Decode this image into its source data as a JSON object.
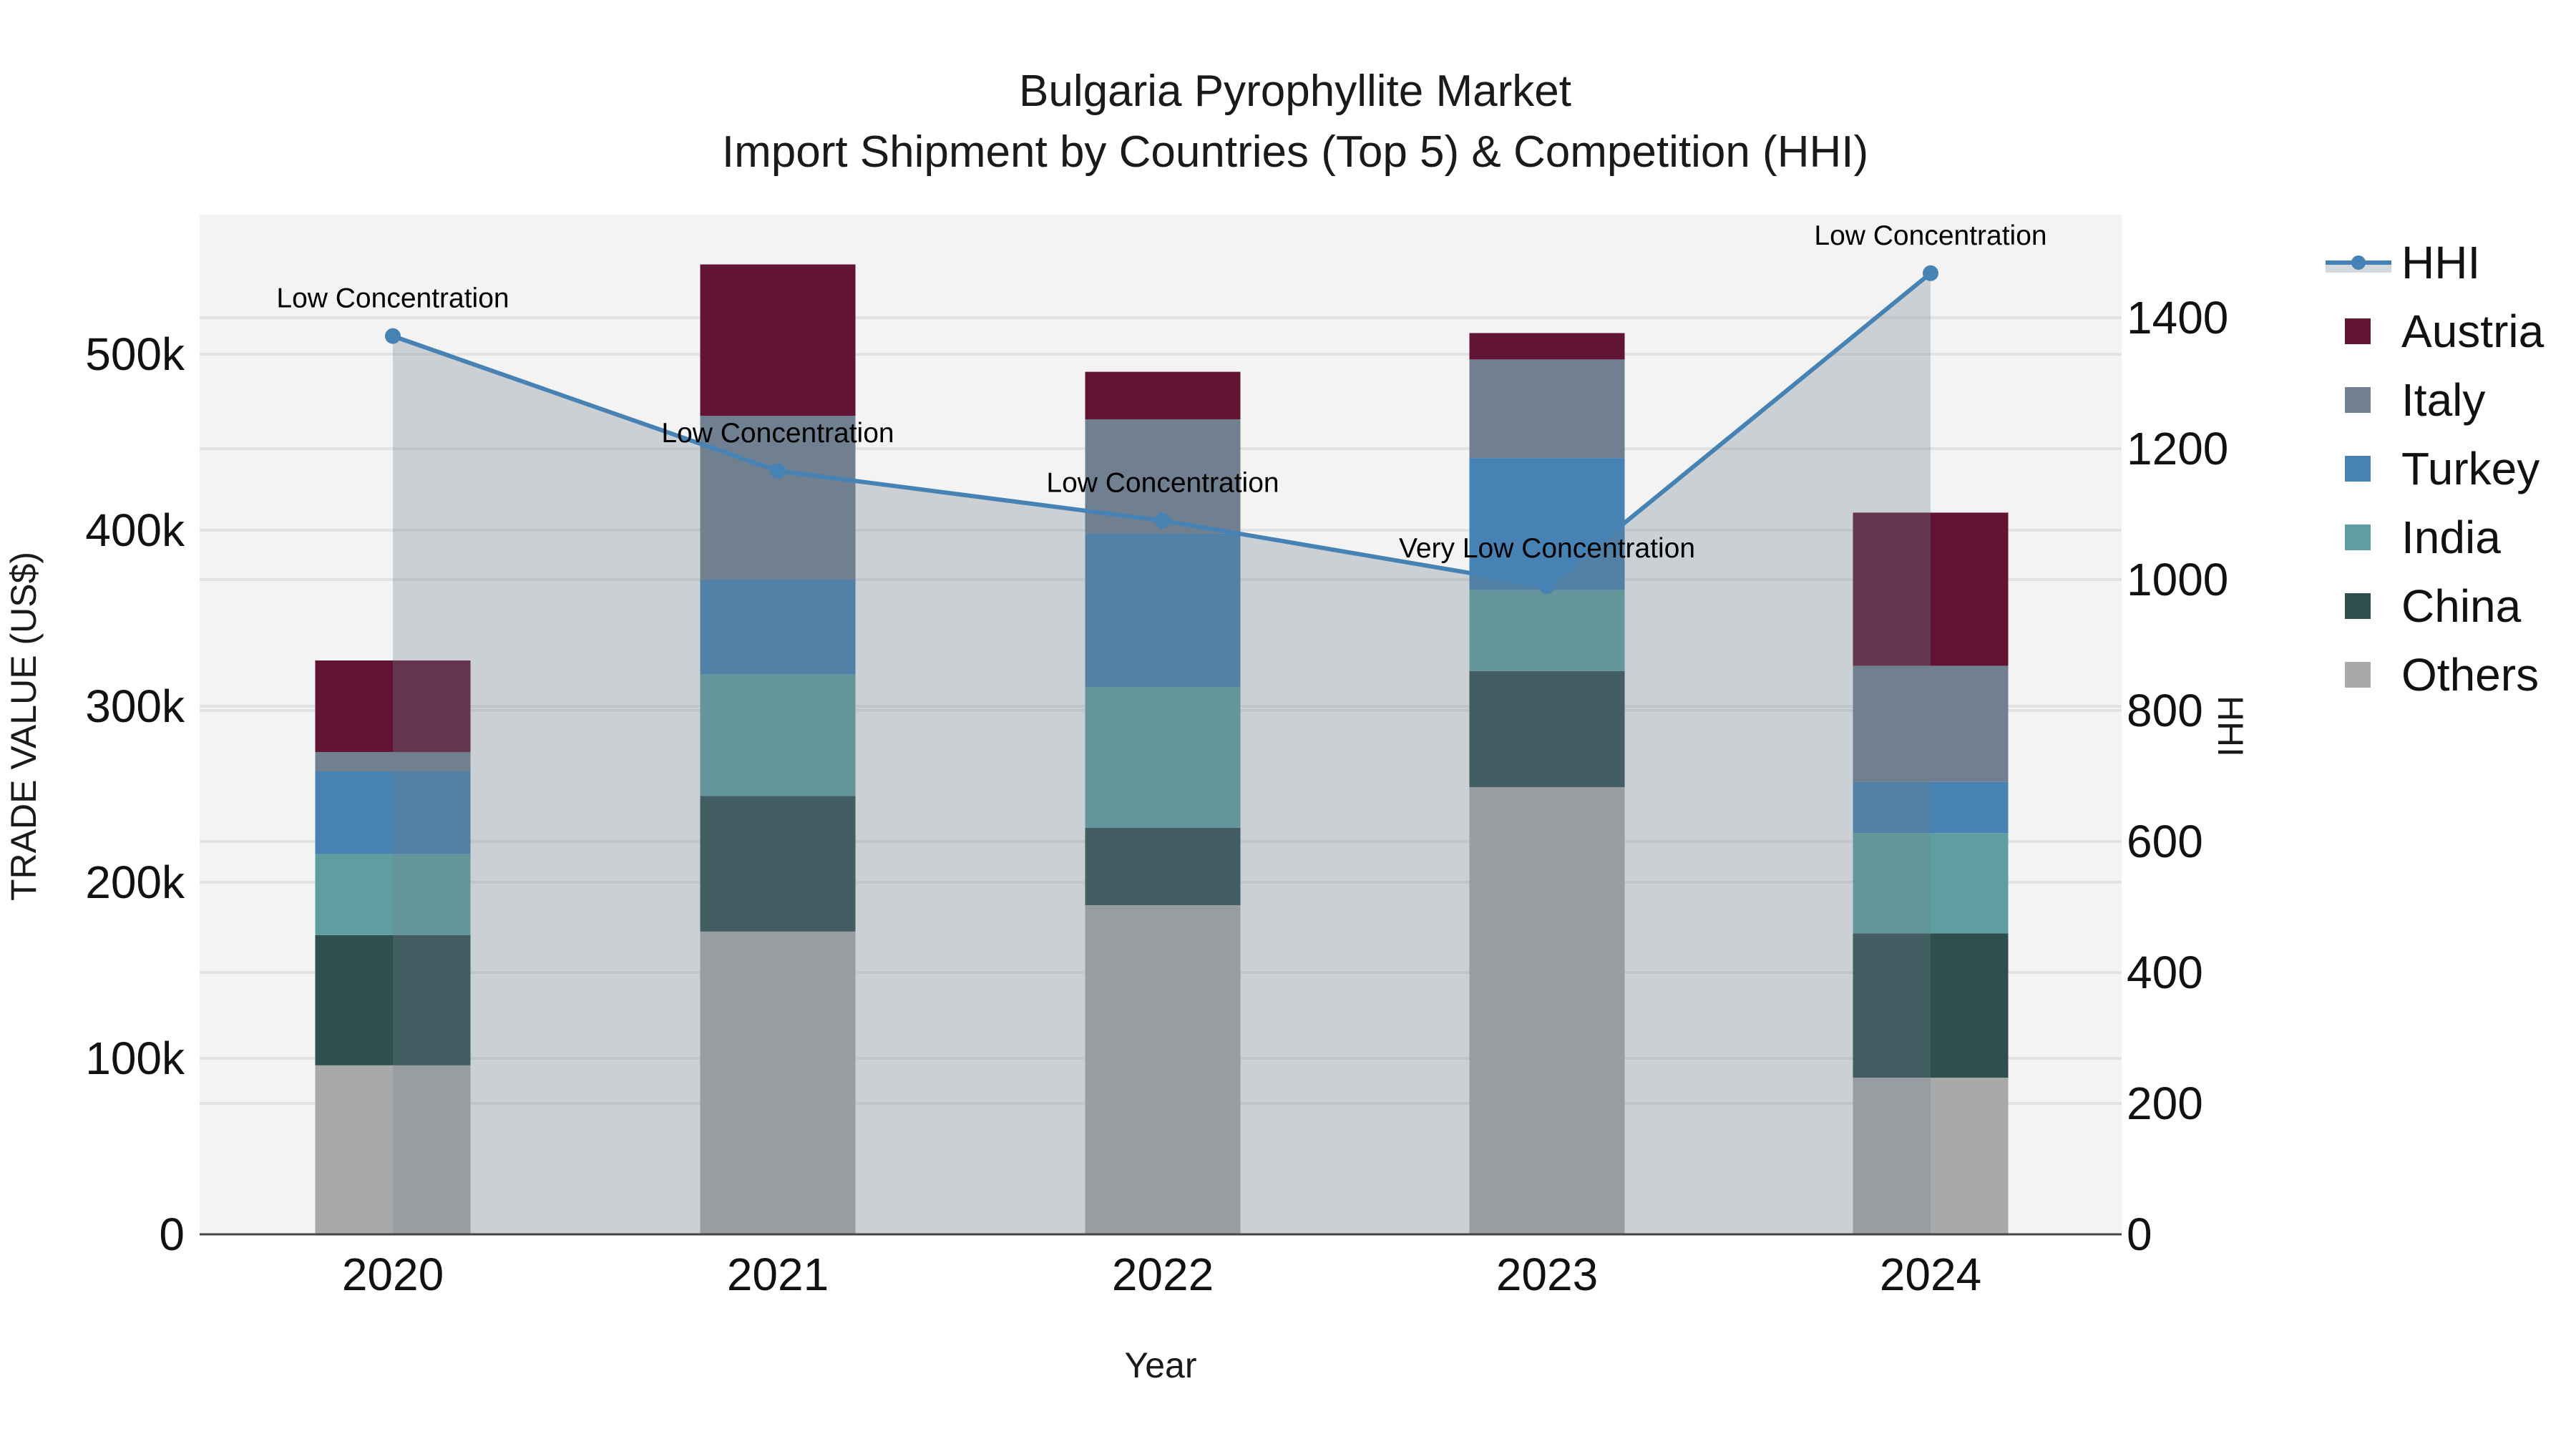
{
  "title": {
    "line1": "Bulgaria Pyrophyllite Market",
    "line2": "Import Shipment by Countries (Top 5) & Competition (HHI)"
  },
  "axes": {
    "x_title": "Year",
    "y_left_title": "TRADE VALUE (US$)",
    "y_right_title": "HHI",
    "y_left_ticks": [
      "0",
      "100k",
      "200k",
      "300k",
      "400k",
      "500k"
    ],
    "y_right_ticks": [
      "0",
      "200",
      "400",
      "600",
      "800",
      "1000",
      "1200",
      "1400"
    ],
    "x_ticks": [
      "2020",
      "2021",
      "2022",
      "2023",
      "2024"
    ]
  },
  "legend": {
    "items": [
      {
        "label": "HHI",
        "type": "line",
        "color": "#4682b4"
      },
      {
        "label": "Austria",
        "type": "bar",
        "color": "#611434"
      },
      {
        "label": "Italy",
        "type": "bar",
        "color": "#708090"
      },
      {
        "label": "Turkey",
        "type": "bar",
        "color": "#4682b4"
      },
      {
        "label": "India",
        "type": "bar",
        "color": "#5f9ea0"
      },
      {
        "label": "China",
        "type": "bar",
        "color": "#2f4f4f"
      },
      {
        "label": "Others",
        "type": "bar",
        "color": "#a9a9a9"
      }
    ]
  },
  "annotations": [
    {
      "year": "2020",
      "text": "Low Concentration"
    },
    {
      "year": "2021",
      "text": "Low Concentration"
    },
    {
      "year": "2022",
      "text": "Low Concentration"
    },
    {
      "year": "2023",
      "text": "Very Low Concentration"
    },
    {
      "year": "2024",
      "text": "Low Concentration"
    }
  ],
  "chart_data": {
    "type": "bar",
    "subtype": "stacked bar with secondary-axis line/area",
    "title": "Bulgaria Pyrophyllite Market — Import Shipment by Countries (Top 5) & Competition (HHI)",
    "xlabel": "Year",
    "ylabel": "TRADE VALUE (US$)",
    "y2label": "HHI",
    "categories": [
      "2020",
      "2021",
      "2022",
      "2023",
      "2024"
    ],
    "ylim": [
      0,
      580000
    ],
    "y2lim": [
      0,
      1560
    ],
    "grid": true,
    "legend_position": "right",
    "series": [
      {
        "name": "Others",
        "color": "#a9a9a9",
        "values": [
          96000,
          172000,
          187000,
          254000,
          89000
        ]
      },
      {
        "name": "China",
        "color": "#2f4f4f",
        "values": [
          74000,
          77000,
          44000,
          66000,
          82000
        ]
      },
      {
        "name": "India",
        "color": "#5f9ea0",
        "values": [
          46000,
          69000,
          80000,
          46000,
          57000
        ]
      },
      {
        "name": "Turkey",
        "color": "#4682b4",
        "values": [
          47000,
          54000,
          87000,
          75000,
          29000
        ]
      },
      {
        "name": "Italy",
        "color": "#708090",
        "values": [
          11000,
          93000,
          65000,
          56000,
          66000
        ]
      },
      {
        "name": "Austria",
        "color": "#611434",
        "values": [
          52000,
          86000,
          27000,
          15000,
          87000
        ]
      }
    ],
    "totals": [
      326000,
      551000,
      490000,
      512000,
      410000
    ],
    "line_series": {
      "name": "HHI",
      "axis": "right",
      "color": "#4682b4",
      "values": [
        1372,
        1166,
        1090,
        990,
        1468
      ],
      "labels": [
        "Low Concentration",
        "Low Concentration",
        "Low Concentration",
        "Very Low Concentration",
        "Low Concentration"
      ]
    }
  }
}
